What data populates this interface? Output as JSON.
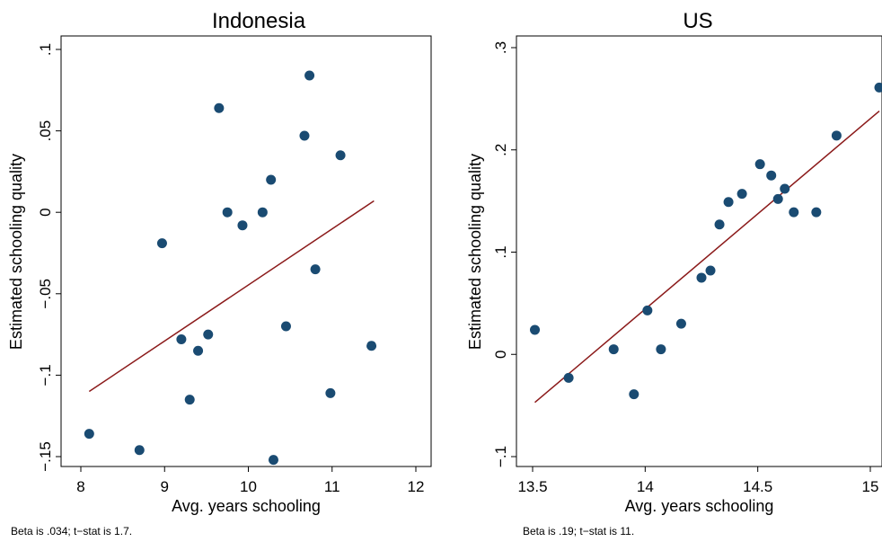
{
  "chart_data": [
    {
      "type": "scatter",
      "title": "Indonesia",
      "xlabel": "Avg. years schooling",
      "ylabel": "Estimated schooling quality",
      "note": "Beta is  .034; t−stat is    1.7.",
      "xlim": [
        8,
        12
      ],
      "ylim": [
        -0.16,
        0.1
      ],
      "xticks": [
        8,
        9,
        10,
        11,
        12
      ],
      "xtick_labels": [
        "8",
        "9",
        "10",
        "11",
        "12"
      ],
      "yticks": [
        -0.15,
        -0.1,
        -0.05,
        0,
        0.05,
        0.1
      ],
      "ytick_labels": [
        "−.15",
        "−.1",
        "−.05",
        "0",
        ".05",
        ".1"
      ],
      "points": [
        {
          "x": 8.1,
          "y": -0.136
        },
        {
          "x": 8.7,
          "y": -0.146
        },
        {
          "x": 8.97,
          "y": -0.019
        },
        {
          "x": 9.2,
          "y": -0.078
        },
        {
          "x": 9.3,
          "y": -0.115
        },
        {
          "x": 9.4,
          "y": -0.085
        },
        {
          "x": 9.52,
          "y": -0.075
        },
        {
          "x": 9.65,
          "y": 0.064
        },
        {
          "x": 9.75,
          "y": 0.0
        },
        {
          "x": 9.93,
          "y": -0.008
        },
        {
          "x": 10.17,
          "y": 0.0
        },
        {
          "x": 10.27,
          "y": 0.02
        },
        {
          "x": 10.3,
          "y": -0.152
        },
        {
          "x": 10.45,
          "y": -0.07
        },
        {
          "x": 10.67,
          "y": 0.047
        },
        {
          "x": 10.73,
          "y": 0.084
        },
        {
          "x": 10.8,
          "y": -0.035
        },
        {
          "x": 10.98,
          "y": -0.111
        },
        {
          "x": 11.1,
          "y": 0.035
        },
        {
          "x": 11.47,
          "y": -0.082
        }
      ],
      "fit_line": {
        "x": [
          8.1,
          11.5
        ],
        "y": [
          -0.11,
          0.007
        ]
      },
      "colors": {
        "points": "#1a4b72",
        "fit_line": "#8b1a1a"
      }
    },
    {
      "type": "scatter",
      "title": "US",
      "xlabel": "Avg. years schooling",
      "ylabel": "Estimated schooling quality",
      "note": "Beta is    .19; t−stat is     11.",
      "xlim": [
        13.5,
        15.05
      ],
      "ylim": [
        -0.11,
        0.31
      ],
      "xticks": [
        13.5,
        14,
        14.5,
        15
      ],
      "xtick_labels": [
        "13.5",
        "14",
        "14.5",
        "15"
      ],
      "yticks": [
        -0.1,
        0,
        0.1,
        0.2,
        0.3
      ],
      "ytick_labels": [
        "−.1",
        "0",
        ".1",
        ".2",
        ".3"
      ],
      "points": [
        {
          "x": 13.51,
          "y": 0.024
        },
        {
          "x": 13.66,
          "y": -0.023
        },
        {
          "x": 13.86,
          "y": 0.005
        },
        {
          "x": 13.95,
          "y": -0.039
        },
        {
          "x": 14.01,
          "y": 0.043
        },
        {
          "x": 14.07,
          "y": 0.005
        },
        {
          "x": 14.16,
          "y": 0.03
        },
        {
          "x": 14.25,
          "y": 0.075
        },
        {
          "x": 14.29,
          "y": 0.082
        },
        {
          "x": 14.33,
          "y": 0.127
        },
        {
          "x": 14.37,
          "y": 0.149
        },
        {
          "x": 14.43,
          "y": 0.157
        },
        {
          "x": 14.51,
          "y": 0.186
        },
        {
          "x": 14.56,
          "y": 0.175
        },
        {
          "x": 14.59,
          "y": 0.152
        },
        {
          "x": 14.62,
          "y": 0.162
        },
        {
          "x": 14.66,
          "y": 0.139
        },
        {
          "x": 14.76,
          "y": 0.139
        },
        {
          "x": 14.85,
          "y": 0.214
        },
        {
          "x": 15.04,
          "y": 0.261
        }
      ],
      "fit_line": {
        "x": [
          13.51,
          15.04
        ],
        "y": [
          -0.047,
          0.238
        ]
      },
      "colors": {
        "points": "#1a4b72",
        "fit_line": "#8b1a1a"
      }
    }
  ]
}
